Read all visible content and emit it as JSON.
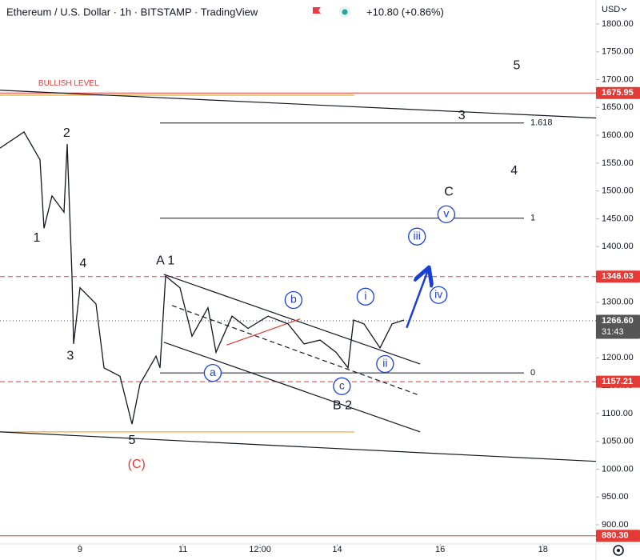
{
  "chart_data": {
    "type": "line",
    "title": "Ethereum / U.S. Dollar · 1h · BITSTAMP · TradingView",
    "change": "+10.80 (+0.86%)",
    "currency": "USD",
    "color": "#131722",
    "x": [
      7.445,
      7.912,
      8.223,
      8.3,
      8.456,
      8.689,
      8.751,
      8.845,
      8.876,
      9.0,
      9.311,
      9.467,
      9.778,
      10.011,
      10.167,
      10.478,
      10.555,
      10.664,
      10.944,
      11.177,
      11.488,
      11.644,
      11.955,
      12.266,
      12.655,
      13.044,
      13.355,
      13.666,
      13.977,
      14.21,
      14.319,
      14.521,
      14.832,
      15.066,
      15.299
    ],
    "values": [
      1577,
      1606,
      1556,
      1433,
      1491,
      1462,
      1584,
      1347,
      1225,
      1326,
      1297,
      1182,
      1167,
      1081,
      1153,
      1203,
      1182,
      1347,
      1326,
      1239,
      1290,
      1210,
      1275,
      1253,
      1275,
      1261,
      1225,
      1232,
      1210,
      1182,
      1268,
      1261,
      1218,
      1261,
      1268
    ],
    "xlim": [
      7.445,
      19.03
    ],
    "ylim": [
      865.5,
      1843.1
    ],
    "xticks": [
      9,
      11,
      {
        "value": 12.5,
        "label": "12:00"
      },
      14,
      16,
      18
    ],
    "yticks": [
      {
        "value": 900,
        "label": "900.00"
      },
      {
        "value": 950,
        "label": "950.00"
      },
      {
        "value": 1000,
        "label": "1000.00"
      },
      {
        "value": 1050,
        "label": "1050.00"
      },
      {
        "value": 1100,
        "label": "1100.00"
      },
      {
        "value": 1150,
        "label": "1150.00"
      },
      {
        "value": 1200,
        "label": "1200.00"
      },
      {
        "value": 1250,
        "label": "1250.00"
      },
      {
        "value": 1300,
        "label": "1300.00"
      },
      {
        "value": 1350,
        "label": "1350.00"
      },
      {
        "value": 1400,
        "label": "1400.00"
      },
      {
        "value": 1450,
        "label": "1450.00"
      },
      {
        "value": 1500,
        "label": "1500.00"
      },
      {
        "value": 1550,
        "label": "1550.00"
      },
      {
        "value": 1600,
        "label": "1600.00"
      },
      {
        "value": 1650,
        "label": "1650.00"
      },
      {
        "value": 1700,
        "label": "1700.00"
      },
      {
        "value": 1750,
        "label": "1750.00"
      },
      {
        "value": 1800,
        "label": "1800.00"
      }
    ],
    "price_lines": [
      {
        "value": 1675.95,
        "label": "1675.95",
        "color": "#e53935",
        "style": "solid"
      },
      {
        "value": 1346.03,
        "label": "1346.03",
        "color": "#e53935",
        "style": "dashed"
      },
      {
        "value": 1157.21,
        "label": "1157.21",
        "color": "#e53935",
        "style": "dashed"
      },
      {
        "value": 880.3,
        "label": "880.30",
        "color": "#e53935",
        "style": "solid"
      },
      {
        "value": 1266.6,
        "label": "1266.60",
        "color": "#555555",
        "style": "dotted",
        "countdown": "31:43"
      }
    ],
    "segments": [
      {
        "x": [
          7.445,
          14.33
        ],
        "y": [
          1672,
          1672
        ],
        "color": "#f0a830"
      },
      {
        "x": [
          7.445,
          14.33
        ],
        "y": [
          1067,
          1067
        ],
        "color": "#f0a830"
      },
      {
        "x": [
          7.445,
          19.03
        ],
        "y": [
          1681,
          1631
        ],
        "color": "#131722"
      },
      {
        "x": [
          7.445,
          19.03
        ],
        "y": [
          1067,
          1014
        ],
        "color": "#131722"
      },
      {
        "x": [
          10.63,
          15.61
        ],
        "y": [
          1350,
          1189
        ],
        "color": "#131722"
      },
      {
        "x": [
          10.63,
          15.61
        ],
        "y": [
          1228,
          1067
        ],
        "color": "#131722"
      },
      {
        "x": [
          10.79,
          15.56
        ],
        "y": [
          1294,
          1134
        ],
        "color": "#131722",
        "style": "dashed"
      },
      {
        "x": [
          11.85,
          13.28
        ],
        "y": [
          1223,
          1270
        ],
        "color": "#e53935"
      },
      {
        "x": [
          15.35,
          15.77
        ],
        "y": [
          1254,
          1359
        ],
        "color": "#1a3fd6",
        "arrow": true
      }
    ],
    "fib_levels": [
      {
        "value": 1622,
        "label": "1.618"
      },
      {
        "value": 1451,
        "label": "1"
      },
      {
        "value": 1173,
        "label": "0"
      }
    ],
    "fib_x": [
      10.555,
      17.63
    ],
    "annotations": [
      {
        "text": "BULLISH LEVEL",
        "x": 8.19,
        "y": 1693,
        "style": "note"
      },
      {
        "text": "5",
        "x": 17.49,
        "y": 1725,
        "style": "wave"
      },
      {
        "text": "3",
        "x": 16.42,
        "y": 1635,
        "style": "wave"
      },
      {
        "text": "4",
        "x": 17.44,
        "y": 1536,
        "style": "wave"
      },
      {
        "text": "C",
        "x": 16.17,
        "y": 1498,
        "style": "wave"
      },
      {
        "text": "2",
        "x": 8.74,
        "y": 1603,
        "style": "wave"
      },
      {
        "text": "1",
        "x": 8.16,
        "y": 1415,
        "style": "wave"
      },
      {
        "text": "4",
        "x": 9.06,
        "y": 1369,
        "style": "wave"
      },
      {
        "text": "3",
        "x": 8.81,
        "y": 1203,
        "style": "wave"
      },
      {
        "text": "5",
        "x": 10.01,
        "y": 1051,
        "style": "wave"
      },
      {
        "text": "(C)",
        "x": 10.1,
        "y": 1008,
        "style": "red"
      },
      {
        "text": "A 1",
        "x": 10.66,
        "y": 1374,
        "style": "wave"
      },
      {
        "text": "B 2",
        "x": 14.1,
        "y": 1114,
        "style": "wave"
      },
      {
        "text": "a",
        "x": 11.58,
        "y": 1173,
        "style": "circle"
      },
      {
        "text": "b",
        "x": 13.15,
        "y": 1304,
        "style": "circle"
      },
      {
        "text": "c",
        "x": 14.09,
        "y": 1149,
        "style": "circle"
      },
      {
        "text": "i",
        "x": 14.55,
        "y": 1310,
        "style": "circle"
      },
      {
        "text": "ii",
        "x": 14.93,
        "y": 1189,
        "style": "circle"
      },
      {
        "text": "iii",
        "x": 15.55,
        "y": 1418,
        "style": "circle"
      },
      {
        "text": "iv",
        "x": 15.97,
        "y": 1313,
        "style": "circle"
      },
      {
        "text": "v",
        "x": 16.12,
        "y": 1458,
        "style": "circle"
      }
    ]
  }
}
